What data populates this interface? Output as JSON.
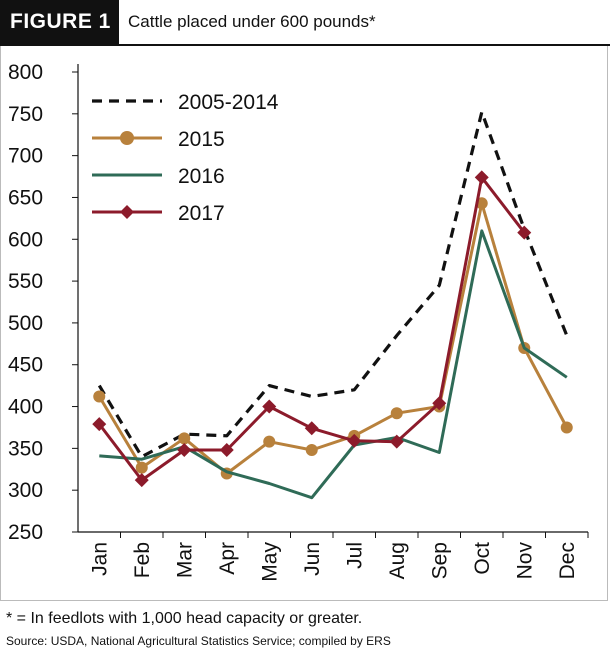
{
  "header": {
    "figure_label": "FIGURE 1",
    "title": "Cattle placed under 600 pounds*"
  },
  "footnote": "* = In feedlots with 1,000 head capacity or greater.",
  "source": "Source: USDA, National Agricultural Statistics Service; compiled by ERS",
  "chart_data": {
    "type": "line",
    "title": "Cattle placed under 600 pounds*",
    "xlabel": "",
    "ylabel": "",
    "categories": [
      "Jan",
      "Feb",
      "Mar",
      "Apr",
      "May",
      "Jun",
      "Jul",
      "Aug",
      "Sep",
      "Oct",
      "Nov",
      "Dec"
    ],
    "ylim": [
      250,
      800
    ],
    "yticks": [
      250,
      300,
      350,
      400,
      450,
      500,
      550,
      600,
      650,
      700,
      750,
      800
    ],
    "grid": false,
    "legend_position": "top-left",
    "series": [
      {
        "name": "2005-2014",
        "color": "#111111",
        "style": "dashed",
        "marker": "none",
        "values": [
          425,
          340,
          367,
          365,
          425,
          412,
          420,
          485,
          545,
          752,
          612,
          485
        ]
      },
      {
        "name": "2015",
        "color": "#b8813c",
        "style": "solid",
        "marker": "circle",
        "values": [
          412,
          327,
          362,
          320,
          358,
          348,
          365,
          392,
          400,
          643,
          470,
          375
        ]
      },
      {
        "name": "2016",
        "color": "#2f6b57",
        "style": "solid",
        "marker": "none",
        "values": [
          341,
          337,
          352,
          322,
          308,
          291,
          354,
          363,
          345,
          610,
          470,
          435
        ]
      },
      {
        "name": "2017",
        "color": "#8c1b2b",
        "style": "solid",
        "marker": "diamond",
        "values": [
          379,
          312,
          348,
          348,
          400,
          374,
          359,
          358,
          404,
          674,
          608,
          null
        ]
      }
    ]
  }
}
